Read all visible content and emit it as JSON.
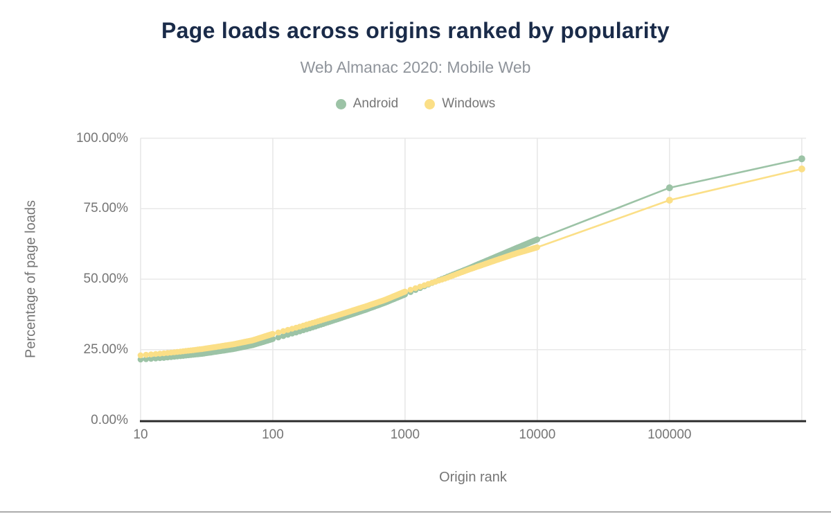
{
  "header": {
    "title": "Page loads across origins ranked by popularity",
    "subtitle": "Web Almanac 2020: Mobile Web"
  },
  "legend": {
    "items": [
      {
        "label": "Android",
        "color": "#9CC3A6"
      },
      {
        "label": "Windows",
        "color": "#FBDF87"
      }
    ]
  },
  "colors": {
    "background": "#FFFFFF",
    "title": "#1A2B49",
    "subtitle": "#8F949B",
    "axis_text": "#757575",
    "grid": "#E8E8E8",
    "axis_line": "#2B2B2B",
    "divider": "#ABABAB"
  },
  "chart_data": {
    "type": "line",
    "title": "Page loads across origins ranked by popularity",
    "subtitle": "Web Almanac 2020: Mobile Web",
    "xlabel": "Origin rank",
    "ylabel": "Percentage of page loads",
    "x_scale": "log",
    "xlim": [
      10,
      1000000
    ],
    "ylim": [
      0,
      100
    ],
    "x_ticks": [
      "10",
      "100",
      "1000",
      "10000",
      "100000"
    ],
    "y_ticks": [
      "100.00%",
      "75.00%",
      "50.00%",
      "25.00%",
      "0.00%"
    ],
    "grid": true,
    "legend_position": "top",
    "series": [
      {
        "name": "Android",
        "color": "#9CC3A6",
        "dense_until": 10000,
        "marker_ranks": [
          100000,
          1000000
        ],
        "points_rank_pct": [
          [
            10,
            21.5
          ],
          [
            15,
            22.1
          ],
          [
            20,
            22.7
          ],
          [
            30,
            23.6
          ],
          [
            50,
            25.2
          ],
          [
            70,
            26.6
          ],
          [
            100,
            28.8
          ],
          [
            150,
            31.1
          ],
          [
            200,
            32.9
          ],
          [
            300,
            35.6
          ],
          [
            500,
            39.1
          ],
          [
            700,
            41.6
          ],
          [
            1000,
            44.6
          ],
          [
            1500,
            48.1
          ],
          [
            2000,
            50.5
          ],
          [
            3000,
            53.8
          ],
          [
            5000,
            58.2
          ],
          [
            7000,
            61.1
          ],
          [
            10000,
            64.1
          ],
          [
            100000,
            82.4
          ],
          [
            1000000,
            92.7
          ]
        ]
      },
      {
        "name": "Windows",
        "color": "#FBDF87",
        "dense_until": 10000,
        "marker_ranks": [
          100000,
          1000000
        ],
        "points_rank_pct": [
          [
            10,
            23.0
          ],
          [
            15,
            23.7
          ],
          [
            20,
            24.3
          ],
          [
            30,
            25.3
          ],
          [
            50,
            26.9
          ],
          [
            70,
            28.3
          ],
          [
            100,
            30.6
          ],
          [
            150,
            32.8
          ],
          [
            200,
            34.5
          ],
          [
            300,
            37.0
          ],
          [
            500,
            40.3
          ],
          [
            700,
            42.6
          ],
          [
            1000,
            45.6
          ],
          [
            1500,
            48.3
          ],
          [
            2000,
            50.2
          ],
          [
            3000,
            53.3
          ],
          [
            5000,
            56.9
          ],
          [
            7000,
            59.2
          ],
          [
            10000,
            61.3
          ],
          [
            100000,
            78.0
          ],
          [
            1000000,
            89.1
          ]
        ]
      }
    ]
  }
}
